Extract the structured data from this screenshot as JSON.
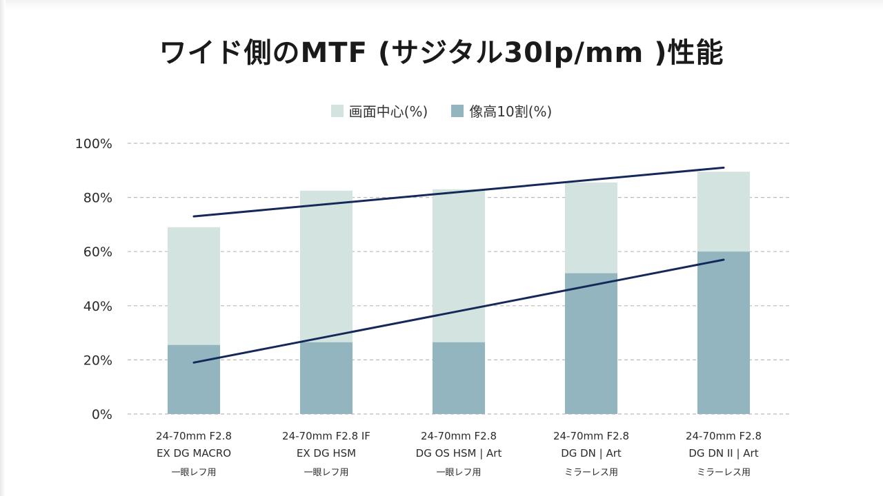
{
  "title": "ワイド側のMTF (サジタル30lp/mm )性能",
  "colors": {
    "center": "#d3e3df",
    "edge": "#93b5bf",
    "trend": "#14285a",
    "grid": "#b9b9b9"
  },
  "chart_data": {
    "type": "bar",
    "title": "ワイド側のMTF (サジタル30lp/mm )性能",
    "categories": [
      [
        "24-70mm F2.8",
        "EX DG MACRO",
        "一眼レフ用"
      ],
      [
        "24-70mm F2.8 IF",
        "EX DG HSM",
        "一眼レフ用"
      ],
      [
        "24-70mm F2.8",
        "DG OS HSM | Art",
        "一眼レフ用"
      ],
      [
        "24-70mm F2.8",
        "DG DN | Art",
        "ミラーレス用"
      ],
      [
        "24-70mm F2.8",
        "DG DN II | Art",
        "ミラーレス用"
      ]
    ],
    "series": [
      {
        "name": "画面中心(%)",
        "values": [
          69,
          82.5,
          83,
          85.5,
          89.5
        ]
      },
      {
        "name": "像高10割(%)",
        "values": [
          25.5,
          26.5,
          26.5,
          52,
          60
        ]
      }
    ],
    "trend_lines": [
      {
        "from": [
          0,
          73
        ],
        "to": [
          4,
          91
        ]
      },
      {
        "from": [
          0,
          19
        ],
        "to": [
          4,
          57
        ]
      }
    ],
    "y_ticks": [
      "0%",
      "20%",
      "40%",
      "60%",
      "80%",
      "100%"
    ],
    "ylim": [
      0,
      100
    ],
    "grid": "dashed horizontal",
    "legend": "top-center",
    "overlay": true
  }
}
